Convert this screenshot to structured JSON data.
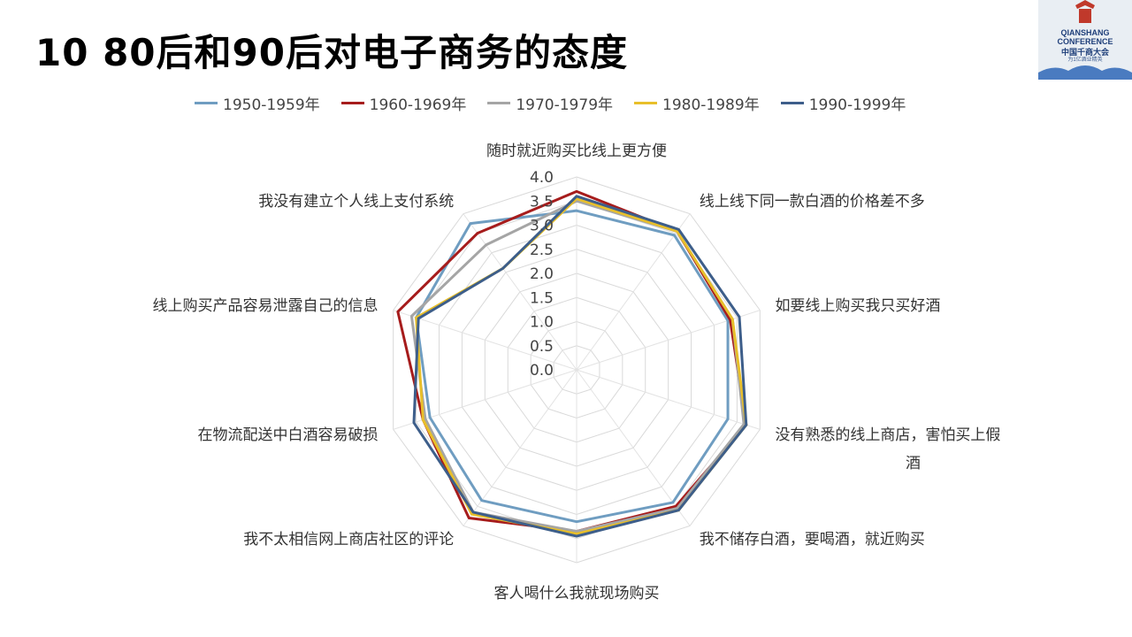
{
  "page": {
    "title": "10 80后和90后对电子商务的态度"
  },
  "logo": {
    "line1": "QIANSHANG",
    "line2": "CONFERENCE",
    "line3": "中国千商大会",
    "line4": "为1亿酒业精英"
  },
  "chart_data": {
    "type": "radar",
    "title": "",
    "axes": [
      "随时就近购买比线上更方便",
      "线上线下同一款白酒的价格差不多",
      "如要线上购买我只买好酒",
      "没有熟悉的线上商店，害怕买上假酒",
      "我不储存白酒，要喝酒，就近购买",
      "客人喝什么我就现场购买",
      "我不太相信网上商店社区的评论",
      "在物流配送中白酒容易破损",
      "线上购买产品容易泄露自己的信息",
      "我没有建立个人线上支付系统"
    ],
    "axis_label_lines": [
      [
        "随时就近购买比线上更方便"
      ],
      [
        "线上线下同一款白酒的价格差不多"
      ],
      [
        "如要线上购买我只买好酒"
      ],
      [
        "没有熟悉的线上商店，害怕买上假",
        "酒"
      ],
      [
        "我不储存白酒，要喝酒，就近购买"
      ],
      [
        "客人喝什么我就现场购买"
      ],
      [
        "我不太相信网上商店社区的评论"
      ],
      [
        "在物流配送中白酒容易破损"
      ],
      [
        "线上购买产品容易泄露自己的信息"
      ],
      [
        "我没有建立个人线上支付系统"
      ]
    ],
    "rmin": 0.0,
    "rmax": 4.0,
    "ticks": [
      "0.0",
      "0.5",
      "1.0",
      "1.5",
      "2.0",
      "2.5",
      "3.0",
      "3.5",
      "4.0"
    ],
    "tick_values": [
      0,
      0.5,
      1.0,
      1.5,
      2.0,
      2.5,
      3.0,
      3.5,
      4.0
    ],
    "grid": true,
    "legend_position": "top",
    "series": [
      {
        "name": "1950-1959年",
        "color": "#6f9dc1",
        "values": [
          3.3,
          3.45,
          3.3,
          3.3,
          3.4,
          3.15,
          3.35,
          3.2,
          3.5,
          3.75
        ]
      },
      {
        "name": "1960-1969年",
        "color": "#a61c1c",
        "values": [
          3.7,
          3.55,
          3.35,
          3.7,
          3.5,
          3.35,
          3.8,
          3.35,
          3.9,
          3.5
        ]
      },
      {
        "name": "1970-1979年",
        "color": "#a5a5a5",
        "values": [
          3.5,
          3.55,
          3.4,
          3.65,
          3.55,
          3.35,
          3.65,
          3.3,
          3.6,
          3.2
        ]
      },
      {
        "name": "1980-1989年",
        "color": "#e8bf2a",
        "values": [
          3.55,
          3.55,
          3.4,
          3.7,
          3.6,
          3.4,
          3.7,
          3.35,
          3.5,
          2.6
        ]
      },
      {
        "name": "1990-1999年",
        "color": "#3d5e8a",
        "values": [
          3.6,
          3.6,
          3.55,
          3.7,
          3.6,
          3.45,
          3.65,
          3.55,
          3.45,
          2.6
        ]
      }
    ]
  }
}
